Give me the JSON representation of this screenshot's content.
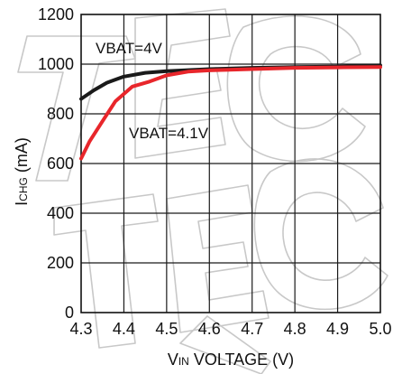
{
  "chart_data": {
    "type": "line",
    "title": "",
    "xlabel": {
      "sub_prefix": "V",
      "sub": "IN",
      "rest": " VOLTAGE (V)"
    },
    "ylabel": {
      "main": "I",
      "sub": "CHG",
      "rest": " (mA)"
    },
    "xlim": [
      4.3,
      5.0
    ],
    "ylim": [
      0,
      1200
    ],
    "grid": true,
    "x_ticks": [
      "4.3",
      "4.4",
      "4.5",
      "4.6",
      "4.7",
      "4.8",
      "4.9",
      "5.0"
    ],
    "y_ticks": [
      "0",
      "200",
      "400",
      "600",
      "800",
      "1000",
      "1200"
    ],
    "series": [
      {
        "name": "VBAT=4V",
        "color": "#1a1a1a",
        "x": [
          4.3,
          4.33,
          4.36,
          4.4,
          4.45,
          4.5,
          4.6,
          4.7,
          4.8,
          4.9,
          5.0
        ],
        "y": [
          860,
          895,
          925,
          950,
          965,
          972,
          980,
          985,
          988,
          990,
          995
        ]
      },
      {
        "name": "VBAT=4.1V",
        "color": "#e8262b",
        "x": [
          4.3,
          4.32,
          4.35,
          4.38,
          4.42,
          4.46,
          4.5,
          4.55,
          4.6,
          4.7,
          4.8,
          4.9,
          5.0
        ],
        "y": [
          620,
          690,
          770,
          850,
          910,
          930,
          955,
          970,
          975,
          980,
          985,
          987,
          988
        ]
      }
    ]
  }
}
